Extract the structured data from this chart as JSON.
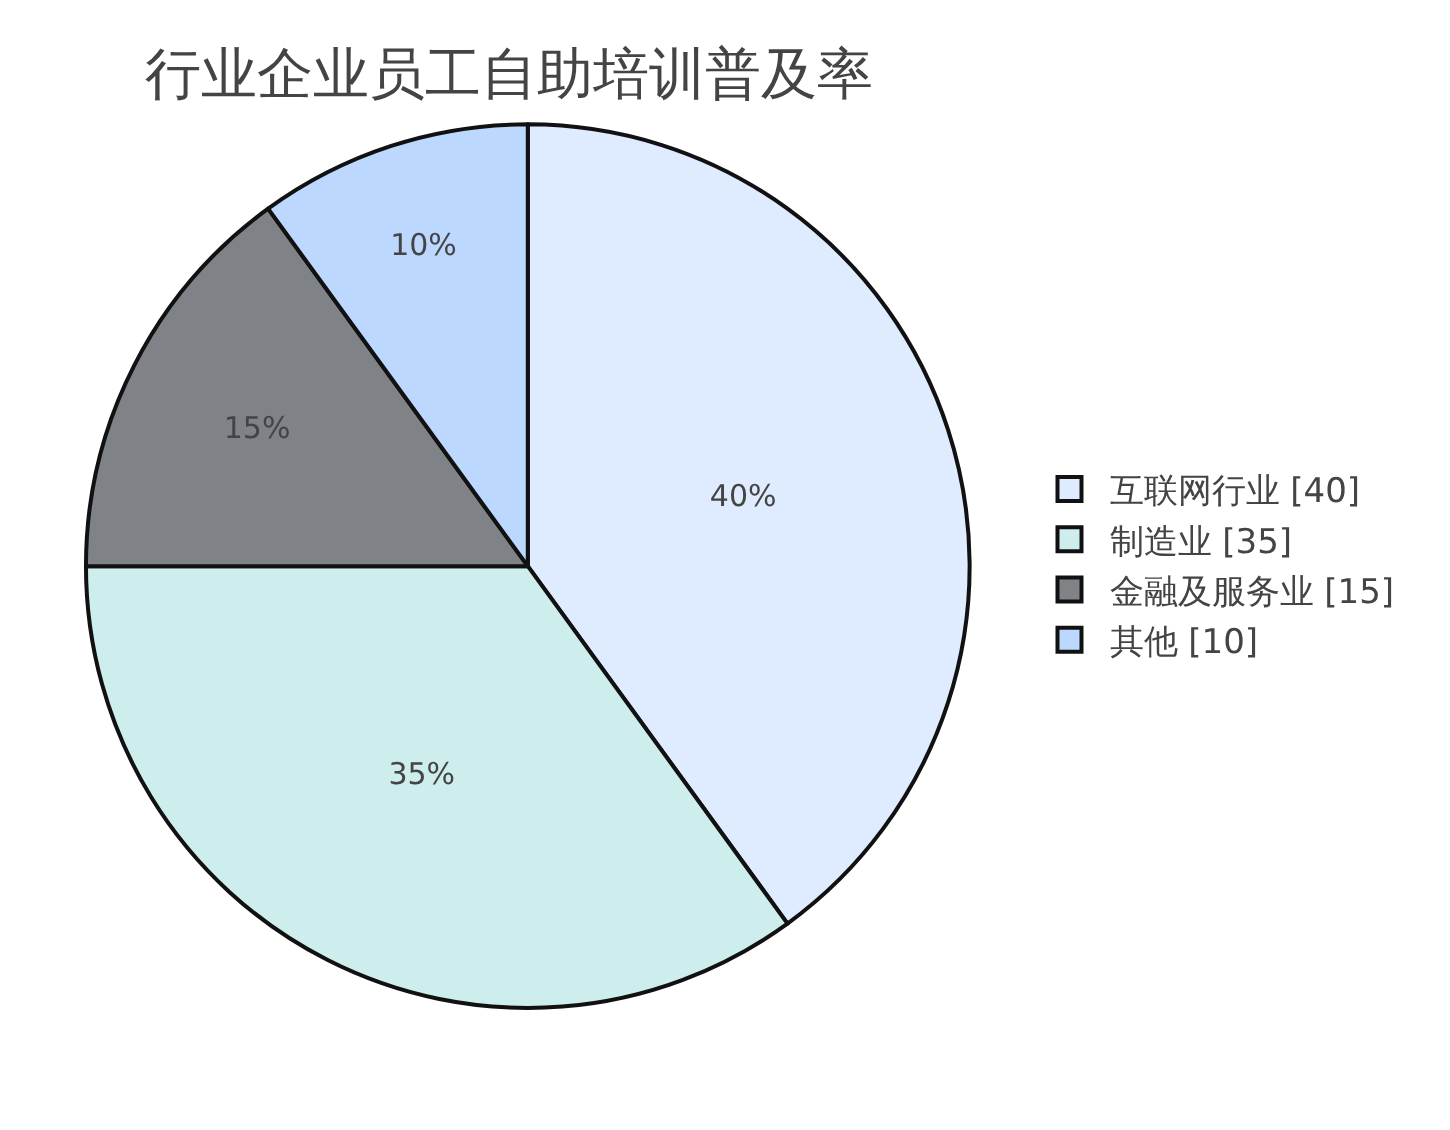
{
  "chart_data": {
    "type": "pie",
    "title": "行业企业员工自助培训普及率",
    "categories": [
      "互联网行业 [40]",
      "制造业 [35]",
      "金融及服务业 [15]",
      "其他 [10]"
    ],
    "values": [
      40,
      35,
      15,
      10
    ],
    "colors": [
      "#dfecff",
      "#cdeeec",
      "#7f8388",
      "#bdd8ff"
    ],
    "value_labels": [
      "40%",
      "35%",
      "15%",
      "10%"
    ],
    "legend": "right"
  }
}
